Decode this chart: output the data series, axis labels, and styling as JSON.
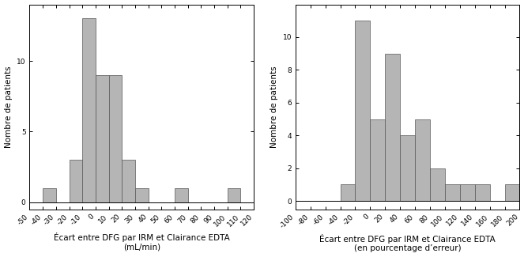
{
  "left": {
    "bin_edges": [
      -50,
      -40,
      -30,
      -20,
      -10,
      0,
      10,
      20,
      30,
      40,
      50,
      60,
      70,
      80,
      90,
      100,
      110,
      120
    ],
    "counts": [
      0,
      1,
      0,
      3,
      13,
      9,
      9,
      3,
      1,
      0,
      0,
      1,
      0,
      0,
      0,
      1,
      0
    ],
    "xlabel_line1": "Écart entre DFG par IRM et Clairance EDTA",
    "xlabel_line2": "(mL/min)",
    "ylabel": "Nombre de patients",
    "xlim": [
      -50,
      120
    ],
    "ylim": [
      -0.5,
      14
    ],
    "yticks": [
      0,
      5,
      10
    ],
    "xticks": [
      -50,
      -40,
      -30,
      -20,
      -10,
      0,
      10,
      20,
      30,
      40,
      50,
      60,
      70,
      80,
      90,
      100,
      110,
      120
    ]
  },
  "right": {
    "bin_edges": [
      -100,
      -80,
      -60,
      -40,
      -20,
      0,
      20,
      40,
      60,
      80,
      100,
      120,
      140,
      160,
      180,
      200
    ],
    "counts": [
      0,
      0,
      0,
      1,
      11,
      5,
      9,
      4,
      5,
      2,
      1,
      1,
      1,
      0,
      1
    ],
    "xlabel_line1": "Écart entre DFG par IRM et Clairance EDTA",
    "xlabel_line2": "(en pourcentage d’erreur)",
    "ylabel": "Nombre de patients",
    "xlim": [
      -100,
      200
    ],
    "ylim": [
      -0.5,
      12
    ],
    "yticks": [
      0,
      2,
      4,
      6,
      8,
      10
    ],
    "xticks": [
      -100,
      -80,
      -60,
      -40,
      -20,
      0,
      20,
      40,
      60,
      80,
      100,
      120,
      140,
      160,
      180,
      200
    ]
  },
  "bar_color": "#b5b5b5",
  "bar_edgecolor": "#555555",
  "bar_linewidth": 0.5,
  "tick_fontsize": 6.5,
  "label_fontsize": 7.5,
  "ylabel_fontsize": 7.5
}
